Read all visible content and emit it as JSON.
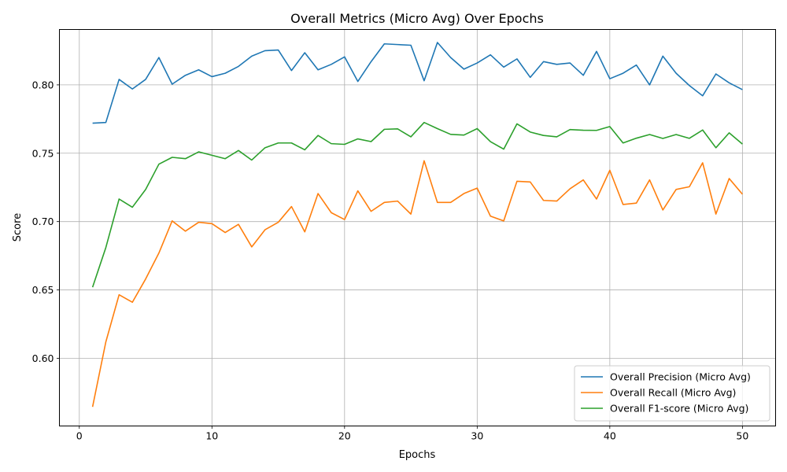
{
  "chart_data": {
    "type": "line",
    "title": "Overall Metrics (Micro Avg) Over Epochs",
    "xlabel": "Epochs",
    "ylabel": "Score",
    "xlim": [
      -1.5,
      52.5
    ],
    "ylim": [
      0.5505,
      0.8405
    ],
    "xticks": [
      0,
      10,
      20,
      30,
      40,
      50
    ],
    "xtick_labels": [
      "0",
      "10",
      "20",
      "30",
      "40",
      "50"
    ],
    "yticks": [
      0.6,
      0.65,
      0.7,
      0.75,
      0.8
    ],
    "ytick_labels": [
      "0.60",
      "0.65",
      "0.70",
      "0.75",
      "0.80"
    ],
    "grid": true,
    "legend_position": "lower-right",
    "x": [
      1,
      2,
      3,
      4,
      5,
      6,
      7,
      8,
      9,
      10,
      11,
      12,
      13,
      14,
      15,
      16,
      17,
      18,
      19,
      20,
      21,
      22,
      23,
      24,
      25,
      26,
      27,
      28,
      29,
      30,
      31,
      32,
      33,
      34,
      35,
      36,
      37,
      38,
      39,
      40,
      41,
      42,
      43,
      44,
      45,
      46,
      47,
      48,
      49,
      50
    ],
    "series": [
      {
        "name": "Overall Precision (Micro Avg)",
        "color": "#1f77b4",
        "values": [
          0.772,
          0.7725,
          0.804,
          0.797,
          0.804,
          0.82,
          0.8005,
          0.807,
          0.811,
          0.806,
          0.8085,
          0.8135,
          0.821,
          0.825,
          0.8255,
          0.8105,
          0.8235,
          0.811,
          0.815,
          0.8205,
          0.8025,
          0.817,
          0.83,
          0.8295,
          0.829,
          0.803,
          0.831,
          0.82,
          0.8115,
          0.816,
          0.822,
          0.813,
          0.819,
          0.8055,
          0.817,
          0.815,
          0.816,
          0.807,
          0.8245,
          0.8045,
          0.8085,
          0.8145,
          0.8,
          0.821,
          0.8085,
          0.7995,
          0.792,
          0.808,
          0.8015,
          0.7965
        ]
      },
      {
        "name": "Overall Recall (Micro Avg)",
        "color": "#ff7f0e",
        "values": [
          0.5645,
          0.612,
          0.6465,
          0.641,
          0.658,
          0.677,
          0.7005,
          0.693,
          0.6995,
          0.6985,
          0.692,
          0.698,
          0.6815,
          0.694,
          0.6995,
          0.711,
          0.6925,
          0.7205,
          0.7065,
          0.7015,
          0.7225,
          0.7075,
          0.714,
          0.715,
          0.7055,
          0.7445,
          0.714,
          0.714,
          0.7205,
          0.7245,
          0.704,
          0.7005,
          0.7295,
          0.729,
          0.7155,
          0.715,
          0.724,
          0.7305,
          0.7165,
          0.7375,
          0.7125,
          0.7135,
          0.7305,
          0.7085,
          0.7235,
          0.7255,
          0.743,
          0.7055,
          0.7315,
          0.72
        ]
      },
      {
        "name": "Overall F1-score (Micro Avg)",
        "color": "#2ca02c",
        "values": [
          0.652,
          0.681,
          0.7165,
          0.7105,
          0.7235,
          0.742,
          0.747,
          0.746,
          0.751,
          0.7485,
          0.746,
          0.752,
          0.745,
          0.754,
          0.7575,
          0.7575,
          0.7525,
          0.763,
          0.757,
          0.7565,
          0.7605,
          0.7585,
          0.7675,
          0.7678,
          0.762,
          0.7725,
          0.768,
          0.7638,
          0.7633,
          0.768,
          0.7585,
          0.753,
          0.7715,
          0.7655,
          0.763,
          0.762,
          0.7673,
          0.7668,
          0.7667,
          0.7695,
          0.7575,
          0.761,
          0.7637,
          0.7608,
          0.7637,
          0.7609,
          0.767,
          0.754,
          0.7649,
          0.7567
        ]
      }
    ]
  }
}
